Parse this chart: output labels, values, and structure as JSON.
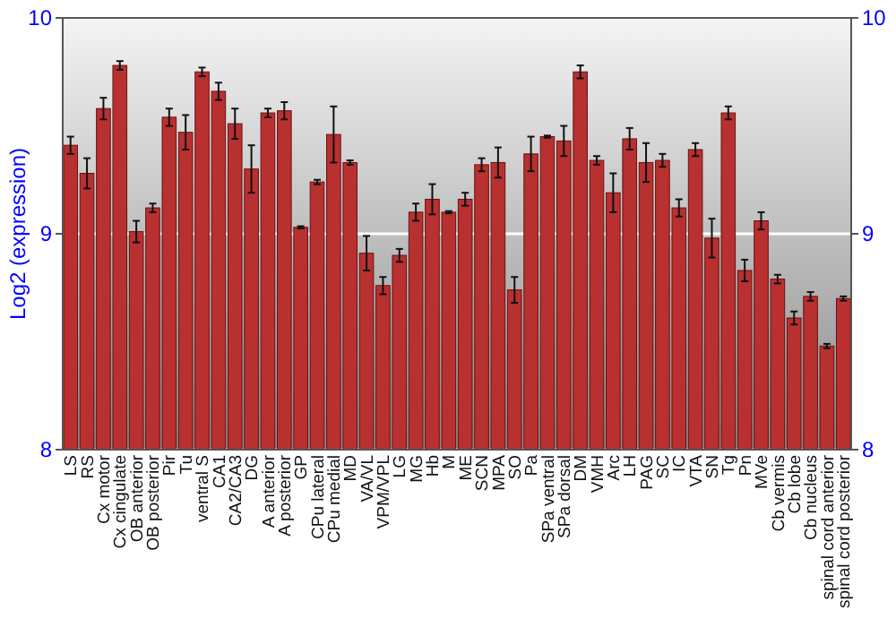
{
  "chart_data": {
    "type": "bar",
    "ylabel": "Log2 (expression)",
    "categories": [
      "LS",
      "RS",
      "Cx motor",
      "Cx cingulate",
      "OB anterior",
      "OB posterior",
      "Pir",
      "Tu",
      "ventral S",
      "CA1",
      "CA2/CA3",
      "DG",
      "A anterior",
      "A posterior",
      "GP",
      "CPu lateral",
      "CPu medial",
      "MD",
      "VA/VL",
      "VPM/VPL",
      "LG",
      "MG",
      "Hb",
      "M",
      "ME",
      "SCN",
      "MPA",
      "SO",
      "Pa",
      "SPa ventral",
      "SPa dorsal",
      "DM",
      "VMH",
      "Arc",
      "LH",
      "PAG",
      "SC",
      "IC",
      "VTA",
      "SN",
      "Tg",
      "Pn",
      "MVe",
      "Cb vermis",
      "Cb lobe",
      "Cb nucleus",
      "spinal cord anterior",
      "spinal cord posterior"
    ],
    "values": [
      9.41,
      9.28,
      9.58,
      9.78,
      9.01,
      9.12,
      9.54,
      9.47,
      9.75,
      9.66,
      9.51,
      9.3,
      9.56,
      9.57,
      9.03,
      9.24,
      9.46,
      9.33,
      8.91,
      8.76,
      8.9,
      9.1,
      9.16,
      9.1,
      9.16,
      9.32,
      9.33,
      8.74,
      9.37,
      9.45,
      9.43,
      9.75,
      9.34,
      9.19,
      9.44,
      9.33,
      9.34,
      9.12,
      9.39,
      8.98,
      9.56,
      8.83,
      9.06,
      8.79,
      8.61,
      8.71,
      8.48,
      8.7
    ],
    "errors": [
      0.04,
      0.07,
      0.05,
      0.02,
      0.05,
      0.02,
      0.04,
      0.08,
      0.02,
      0.04,
      0.07,
      0.11,
      0.02,
      0.04,
      0.005,
      0.01,
      0.13,
      0.01,
      0.08,
      0.04,
      0.03,
      0.04,
      0.07,
      0.005,
      0.03,
      0.03,
      0.07,
      0.06,
      0.08,
      0.005,
      0.07,
      0.03,
      0.02,
      0.09,
      0.05,
      0.09,
      0.03,
      0.04,
      0.03,
      0.09,
      0.03,
      0.05,
      0.04,
      0.02,
      0.03,
      0.02,
      0.01,
      0.01
    ],
    "color": "#b83030",
    "ylim": [
      8,
      10
    ],
    "yticks": [
      8,
      9,
      10
    ],
    "y2lim": [
      8,
      10
    ],
    "y2ticks": [
      8,
      9,
      10
    ],
    "grid": "y"
  }
}
